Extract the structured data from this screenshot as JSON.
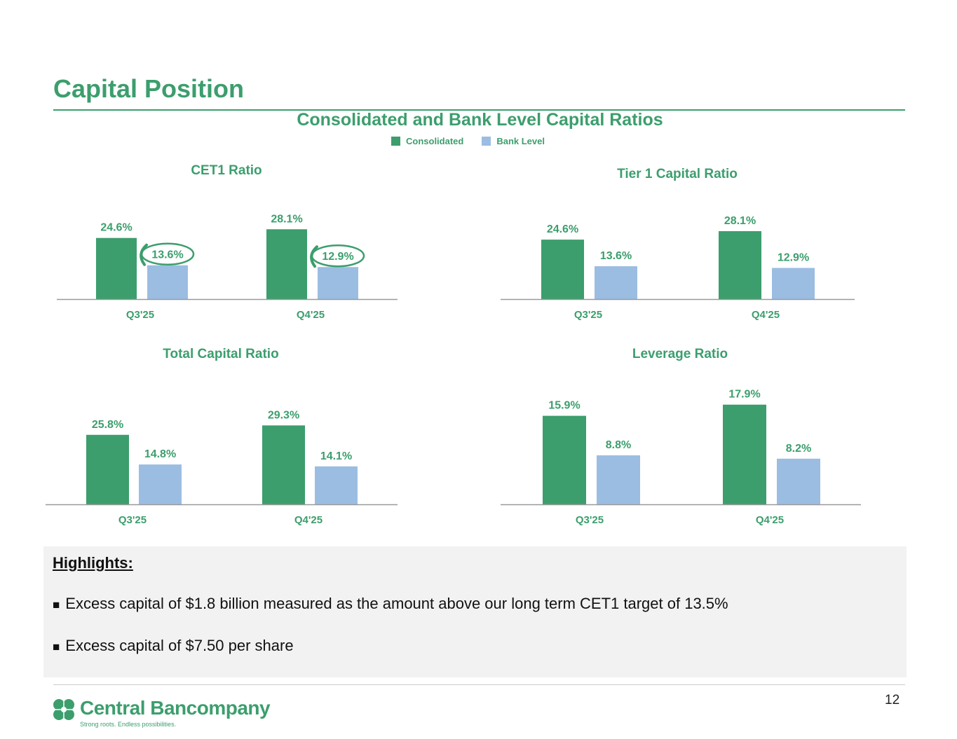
{
  "slide": {
    "title": "Capital Position",
    "section_title": "Consolidated and Bank Level Capital Ratios",
    "page_number": "12"
  },
  "legend": {
    "consolidated": "Consolidated",
    "bank_level": "Bank Level"
  },
  "colors": {
    "consolidated": "#3c9e6d",
    "bank_level": "#9cbde2",
    "accent": "#3c9e6d"
  },
  "chart_data": [
    {
      "type": "bar",
      "title": "CET1 Ratio",
      "categories": [
        "Q3'25",
        "Q4'25"
      ],
      "series": [
        {
          "name": "Consolidated",
          "values": [
            24.6,
            28.1
          ],
          "labels": [
            "24.6%",
            "28.1%"
          ]
        },
        {
          "name": "Bank Level",
          "values": [
            13.6,
            12.9
          ],
          "labels": [
            "13.6%",
            "12.9%"
          ]
        }
      ],
      "highlighted": [
        [
          0,
          1
        ],
        [
          1,
          1
        ]
      ],
      "ylim": [
        0,
        31
      ]
    },
    {
      "type": "bar",
      "title": "Tier 1 Capital Ratio",
      "categories": [
        "Q3'25",
        "Q4'25"
      ],
      "series": [
        {
          "name": "Consolidated",
          "values": [
            24.6,
            28.1
          ],
          "labels": [
            "24.6%",
            "28.1%"
          ]
        },
        {
          "name": "Bank Level",
          "values": [
            13.6,
            12.9
          ],
          "labels": [
            "13.6%",
            "12.9%"
          ]
        }
      ],
      "ylim": [
        0,
        31
      ]
    },
    {
      "type": "bar",
      "title": "Total Capital Ratio",
      "categories": [
        "Q3'25",
        "Q4'25"
      ],
      "series": [
        {
          "name": "Consolidated",
          "values": [
            25.8,
            29.3
          ],
          "labels": [
            "25.8%",
            "29.3%"
          ]
        },
        {
          "name": "Bank Level",
          "values": [
            14.8,
            14.1
          ],
          "labels": [
            "14.8%",
            "14.1%"
          ]
        }
      ],
      "ylim": [
        0,
        39
      ]
    },
    {
      "type": "bar",
      "title": "Leverage Ratio",
      "categories": [
        "Q3'25",
        "Q4'25"
      ],
      "series": [
        {
          "name": "Consolidated",
          "values": [
            15.9,
            17.9
          ],
          "labels": [
            "15.9%",
            "17.9%"
          ]
        },
        {
          "name": "Bank Level",
          "values": [
            8.8,
            8.2
          ],
          "labels": [
            "8.8%",
            "8.2%"
          ]
        }
      ],
      "ylim": [
        0,
        20
      ]
    }
  ],
  "highlights": {
    "title": "Highlights:",
    "bullet": "■",
    "items": [
      "Excess capital of $1.8 billion measured as the amount above our long term CET1 target of 13.5%",
      "Excess capital of $7.50 per share"
    ]
  },
  "logo": {
    "name": "Central Bancompany",
    "tagline": "Strong roots. Endless possibilities."
  }
}
